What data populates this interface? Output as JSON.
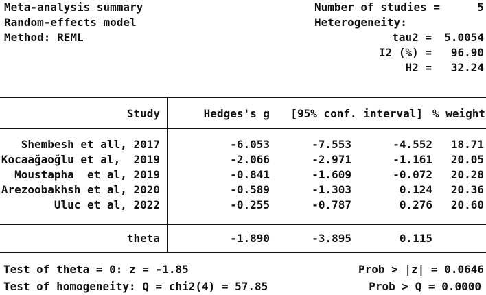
{
  "meta": {
    "title": "Meta-analysis summary",
    "model": "Random-effects model",
    "method": "Method: REML",
    "studies_label": "Number of studies =",
    "studies_value": "5",
    "heterogeneity_label": "Heterogeneity:",
    "heterogeneity_stats": [
      {
        "label": "tau2 =",
        "value": "5.0054"
      },
      {
        "label": "I2 (%) =",
        "value": "96.90"
      },
      {
        "label": "H2 =",
        "value": "32.24"
      }
    ]
  },
  "table": {
    "columns": {
      "study": "Study",
      "effect": "Hedges's g",
      "ci": "[95% conf. interval]",
      "weight": "% weight"
    },
    "rows": [
      {
        "study": "Shembesh et all, 2017",
        "g": "-6.053",
        "ci_low": "-7.553",
        "ci_high": "-4.552",
        "weight": "18.71"
      },
      {
        "study": "Kocaağaoğlu et al,  2019",
        "g": "-2.066",
        "ci_low": "-2.971",
        "ci_high": "-1.161",
        "weight": "20.05"
      },
      {
        "study": "Moustapha  et al, 2019",
        "g": "-0.841",
        "ci_low": "-1.609",
        "ci_high": "-0.072",
        "weight": "20.28"
      },
      {
        "study": "Arezoobakhsh et al, 2020",
        "g": "-0.589",
        "ci_low": "-1.303",
        "ci_high": "0.124",
        "weight": "20.36"
      },
      {
        "study": "Uluc et al, 2022",
        "g": "-0.255",
        "ci_low": "-0.787",
        "ci_high": "0.276",
        "weight": "20.60"
      }
    ],
    "overall": {
      "label": "theta",
      "g": "-1.890",
      "ci_low": "-3.895",
      "ci_high": "0.115",
      "weight": ""
    }
  },
  "tests": {
    "theta_test": "Test of theta = 0: z = -1.85",
    "theta_prob": "Prob > |z| = 0.0646",
    "homogeneity_test": "Test of homogeneity: Q = chi2(4) = 57.85",
    "homogeneity_prob": "Prob > Q = 0.0000"
  },
  "colors": {
    "text": "#111111",
    "background": "#ffffff",
    "rule": "#111111"
  }
}
